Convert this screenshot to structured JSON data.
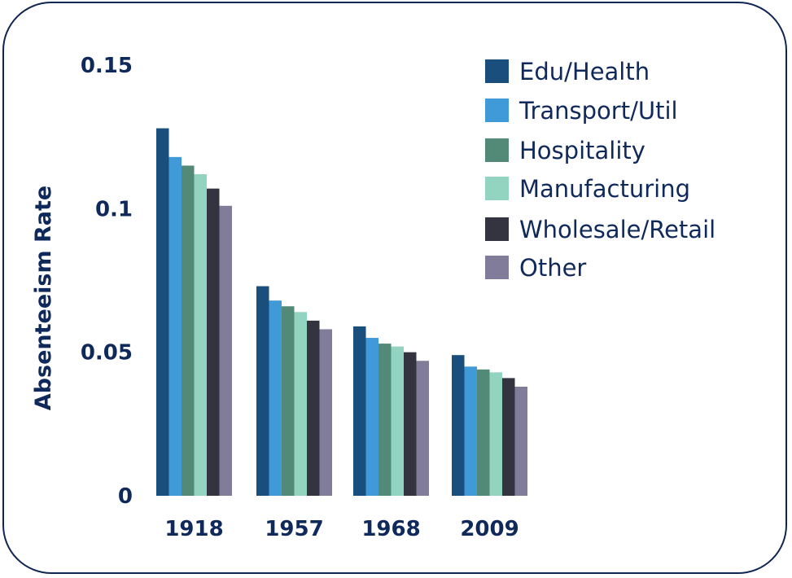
{
  "chart_data": {
    "type": "bar",
    "title": "",
    "xlabel": "",
    "ylabel": "Absenteeism Rate",
    "ylim": [
      0,
      0.15
    ],
    "yticks": [
      {
        "value": 0,
        "label": "0"
      },
      {
        "value": 0.05,
        "label": "0.05"
      },
      {
        "value": 0.1,
        "label": "0.1"
      },
      {
        "value": 0.15,
        "label": "0.15"
      }
    ],
    "categories": [
      "1918",
      "1957",
      "1968",
      "2009"
    ],
    "legend_position": "top-right",
    "grid": false,
    "series": [
      {
        "name": "Edu/Health",
        "color": "#1a4e7c",
        "values": [
          0.128,
          0.073,
          0.059,
          0.049
        ]
      },
      {
        "name": "Transport/Util",
        "color": "#419ad8",
        "values": [
          0.118,
          0.068,
          0.055,
          0.045
        ]
      },
      {
        "name": "Hospitality",
        "color": "#528a77",
        "values": [
          0.115,
          0.066,
          0.053,
          0.044
        ]
      },
      {
        "name": "Manufacturing",
        "color": "#93d4c1",
        "values": [
          0.112,
          0.064,
          0.052,
          0.043
        ]
      },
      {
        "name": "Wholesale/Retail",
        "color": "#33343f",
        "values": [
          0.107,
          0.061,
          0.05,
          0.041
        ]
      },
      {
        "name": "Other",
        "color": "#807c9a",
        "values": [
          0.101,
          0.058,
          0.047,
          0.038
        ]
      }
    ]
  }
}
